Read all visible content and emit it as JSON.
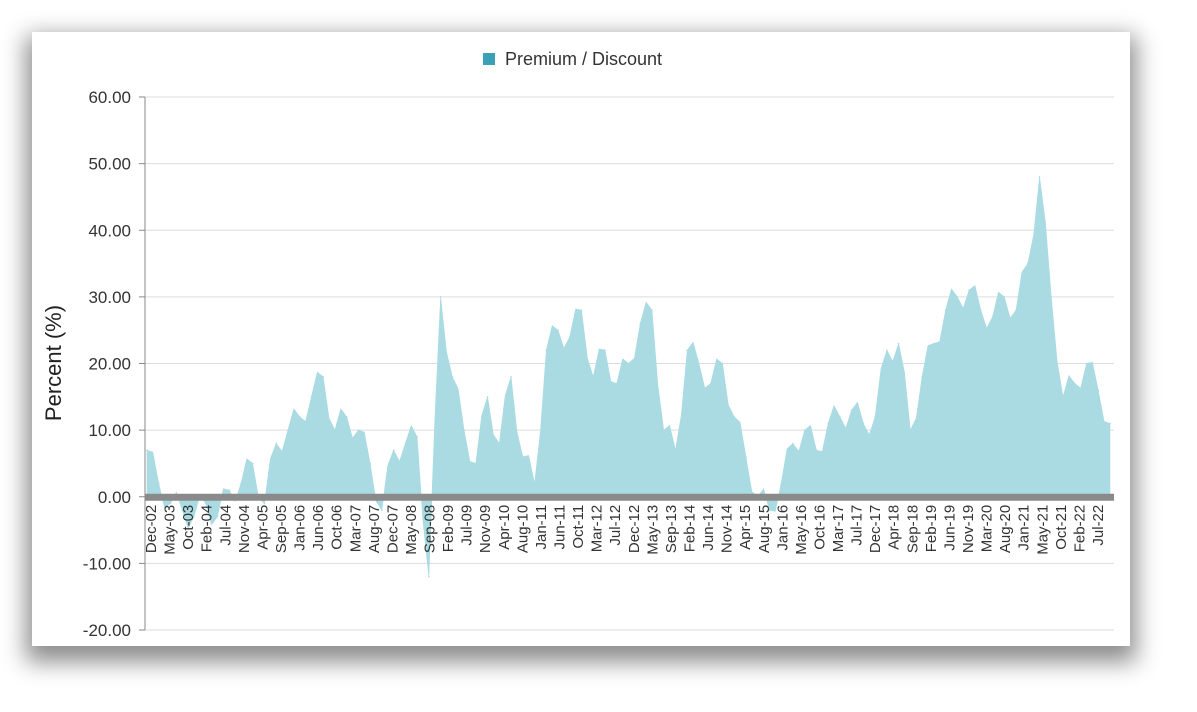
{
  "chart_data": {
    "type": "area",
    "title": "",
    "xlabel": "",
    "ylabel": "Percent (%)",
    "ylim": [
      -20,
      60
    ],
    "yticks": [
      "60.00",
      "50.00",
      "40.00",
      "30.00",
      "20.00",
      "10.00",
      "0.00",
      "-10.00",
      "-20.00"
    ],
    "ytick_values": [
      60,
      50,
      40,
      30,
      20,
      10,
      0,
      -10,
      -20
    ],
    "grid": true,
    "legend_position": "top-center",
    "series": [
      {
        "name": "Premium / Discount",
        "color": "#4aa3b8",
        "fill_color": "#aadbe2",
        "x": [
          "Dec-02",
          "Mar-03",
          "Jun-03",
          "Sep-03",
          "Dec-03",
          "Mar-04",
          "Jun-04",
          "Sep-04",
          "Dec-04",
          "Mar-05",
          "Jun-05",
          "Sep-05",
          "Dec-05",
          "Mar-06",
          "Jun-06",
          "Sep-06",
          "Dec-06",
          "Mar-07",
          "Jun-07",
          "Sep-07",
          "Dec-07",
          "Mar-08",
          "Jun-08",
          "Sep-08",
          "Oct-08",
          "Dec-08",
          "Mar-09",
          "Jun-09",
          "Sep-09",
          "Dec-09",
          "Mar-10",
          "Jun-10",
          "Sep-10",
          "Dec-10",
          "Mar-11",
          "Jun-11",
          "Sep-11",
          "Dec-11",
          "Mar-12",
          "Jun-12",
          "Sep-12",
          "Dec-12",
          "Mar-13",
          "Jun-13",
          "Sep-13",
          "Dec-13",
          "Mar-14",
          "Jun-14",
          "Sep-14",
          "Dec-14",
          "Mar-15",
          "Jun-15",
          "Sep-15",
          "Dec-15",
          "Mar-16",
          "Jun-16",
          "Sep-16",
          "Dec-16",
          "Mar-17",
          "Jun-17",
          "Sep-17",
          "Dec-17",
          "Mar-18",
          "Jun-18",
          "Sep-18",
          "Dec-18",
          "Mar-19",
          "Jun-19",
          "Sep-19",
          "Dec-19",
          "Mar-20",
          "Jun-20",
          "Sep-20",
          "Dec-20",
          "Mar-21",
          "Jun-21",
          "Aug-21",
          "Sep-21",
          "Dec-21",
          "Mar-22",
          "Jun-22",
          "Sep-22",
          "Dec-22"
        ],
        "values": [
          7,
          2,
          -1,
          -2,
          -3,
          -1,
          -3,
          1,
          2,
          5,
          -1,
          8,
          10,
          12,
          15,
          18,
          10,
          12,
          10,
          5,
          -2,
          7,
          8,
          9,
          -12,
          30,
          18,
          10,
          5,
          15,
          8,
          18,
          6,
          2,
          22,
          25,
          24,
          28,
          18,
          22,
          17,
          20,
          26,
          28,
          10,
          7,
          22,
          20,
          17,
          20,
          12,
          6,
          0,
          -2,
          2,
          8,
          10,
          7,
          11,
          12,
          13,
          11,
          12,
          22,
          23,
          10,
          18,
          23,
          28,
          30,
          31,
          28,
          27,
          30,
          28,
          35,
          48,
          30,
          15,
          17,
          20,
          16,
          11
        ]
      }
    ],
    "categories": [
      "Dec-02",
      "May-03",
      "Oct-03",
      "Feb-04",
      "Jul-04",
      "Nov-04",
      "Apr-05",
      "Sep-05",
      "Jan-06",
      "Jun-06",
      "Oct-06",
      "Mar-07",
      "Aug-07",
      "Dec-07",
      "May-08",
      "Sep-08",
      "Feb-09",
      "Jul-09",
      "Nov-09",
      "Apr-10",
      "Aug-10",
      "Jan-11",
      "Jun-11",
      "Oct-11",
      "Mar-12",
      "Jul-12",
      "Dec-12",
      "May-13",
      "Sep-13",
      "Feb-14",
      "Jun-14",
      "Nov-14",
      "Apr-15",
      "Aug-15",
      "Jan-16",
      "May-16",
      "Oct-16",
      "Mar-17",
      "Jul-17",
      "Dec-17",
      "Apr-18",
      "Sep-18",
      "Feb-19",
      "Jun-19",
      "Nov-19",
      "Mar-20",
      "Aug-20",
      "Jan-21",
      "May-21",
      "Oct-21",
      "Feb-22",
      "Jul-22"
    ]
  }
}
